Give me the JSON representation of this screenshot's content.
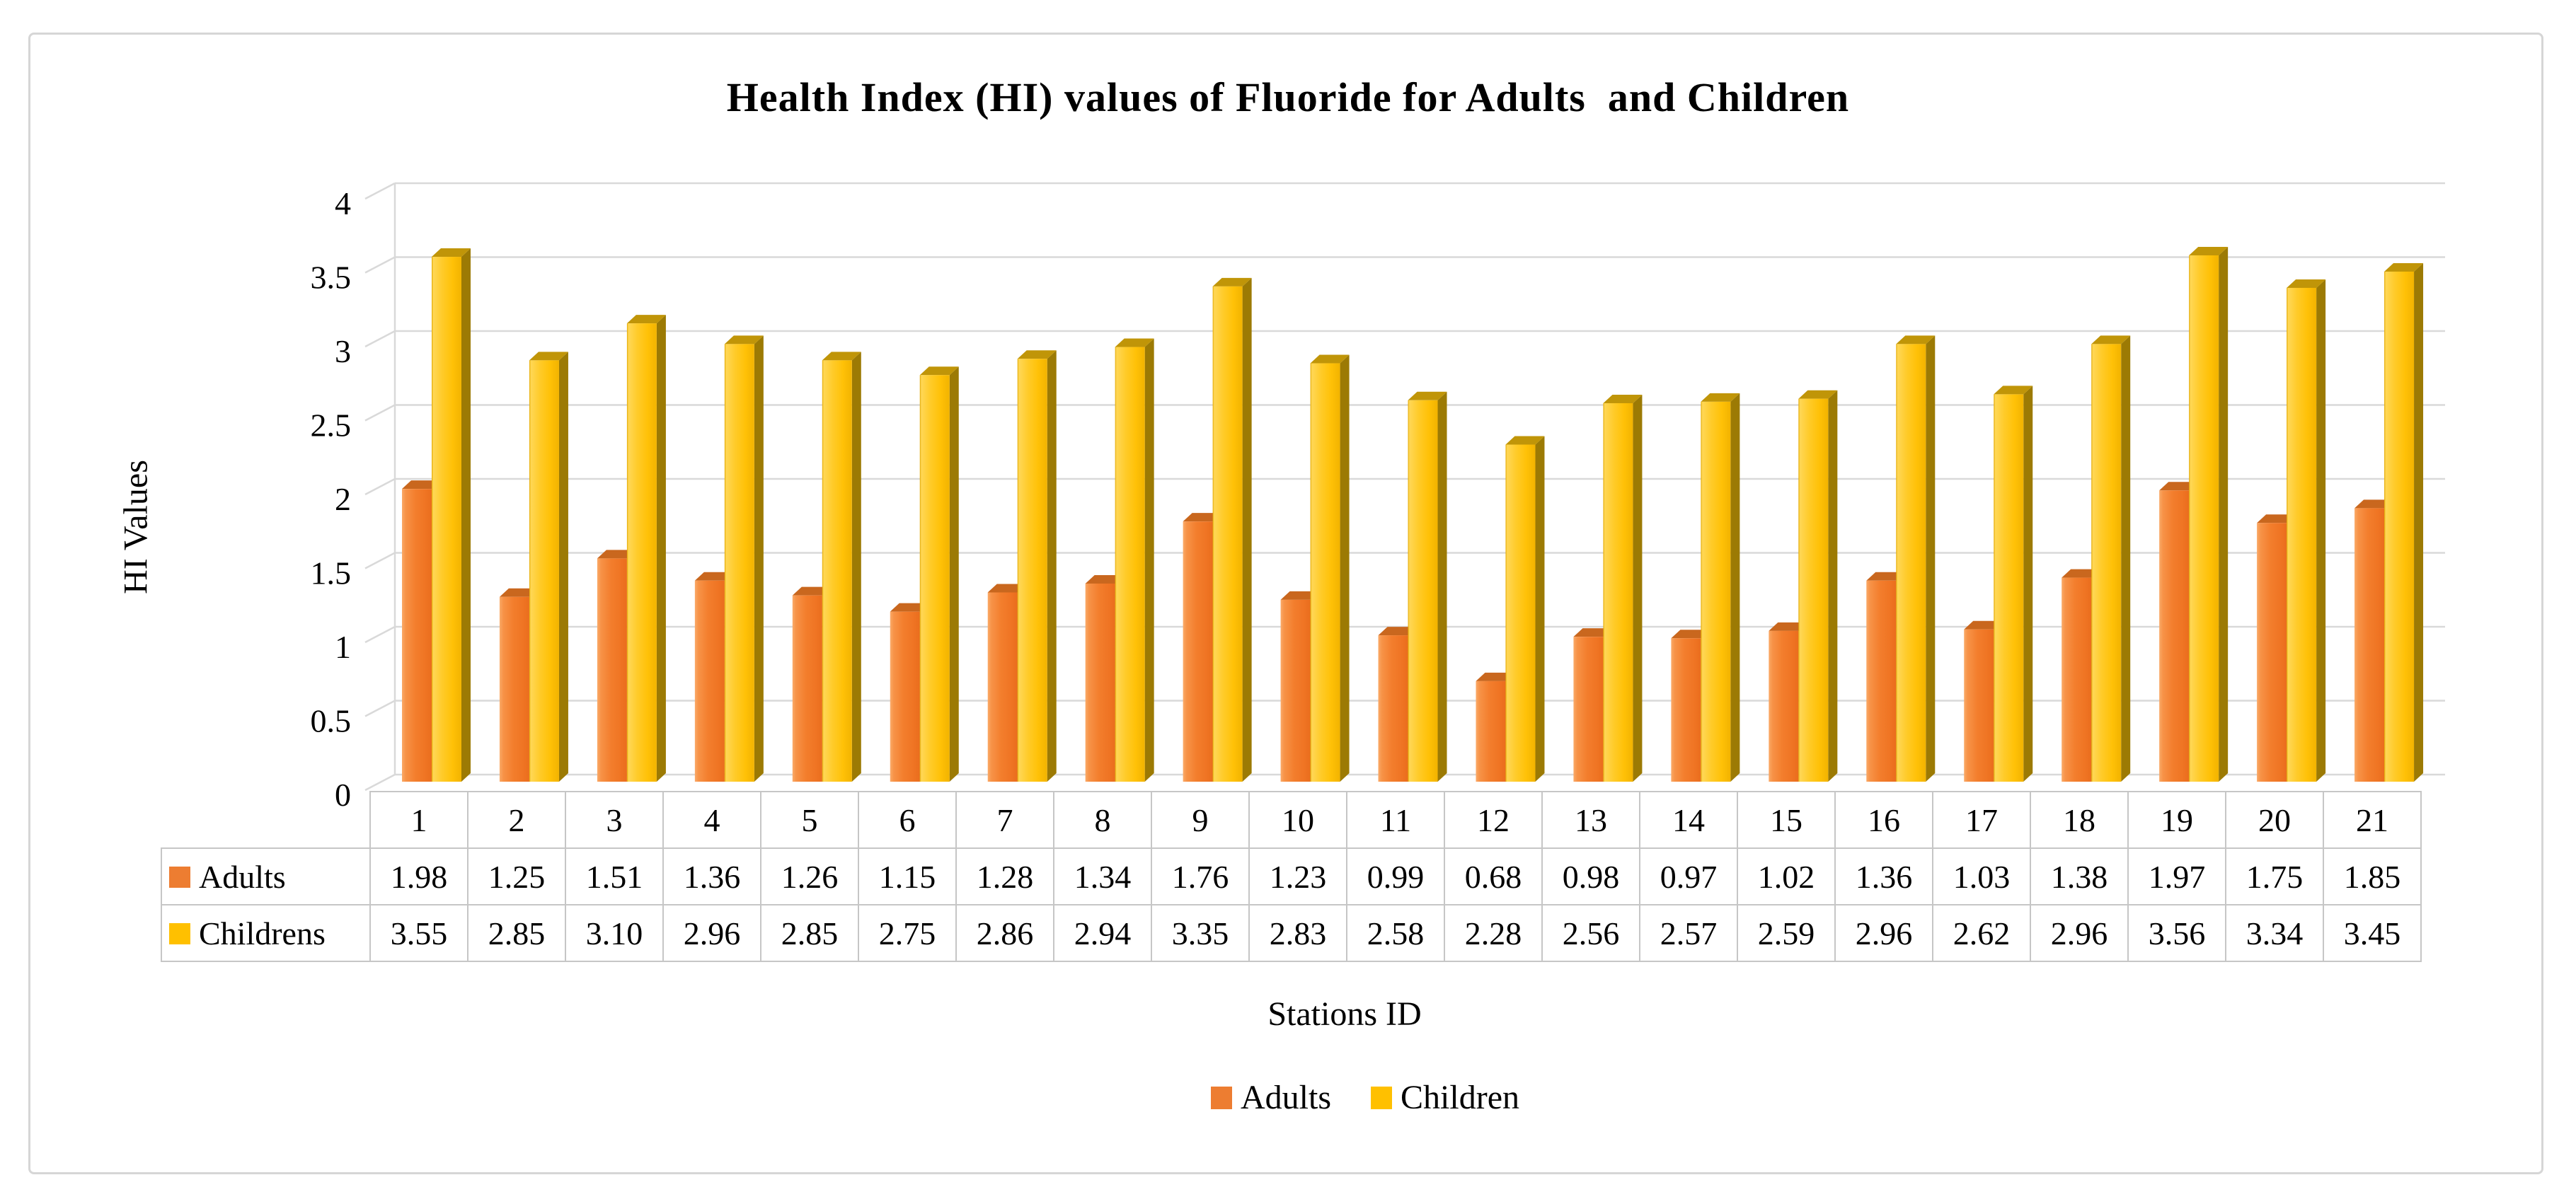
{
  "figure": {
    "background": "#FFFFFF",
    "frame_color": "#D6D6D6"
  },
  "chart_data": {
    "type": "bar",
    "style": "3d-clustered-column",
    "title": "Health Index (HI) values of Fluoride for Adults  and Children",
    "xlabel": "Stations ID",
    "ylabel": "HI Values",
    "categories": [
      "1",
      "2",
      "3",
      "4",
      "5",
      "6",
      "7",
      "8",
      "9",
      "10",
      "11",
      "12",
      "13",
      "14",
      "15",
      "16",
      "17",
      "18",
      "19",
      "20",
      "21"
    ],
    "series": [
      {
        "name": "Adults",
        "legend_label": "Adults",
        "color": "#ED7D31",
        "values": [
          1.98,
          1.25,
          1.51,
          1.36,
          1.26,
          1.15,
          1.28,
          1.34,
          1.76,
          1.23,
          0.99,
          0.68,
          0.98,
          0.97,
          1.02,
          1.36,
          1.03,
          1.38,
          1.97,
          1.75,
          1.85
        ],
        "values_display": [
          "1.98",
          "1.25",
          "1.51",
          "1.36",
          "1.26",
          "1.15",
          "1.28",
          "1.34",
          "1.76",
          "1.23",
          "0.99",
          "0.68",
          "0.98",
          "0.97",
          "1.02",
          "1.36",
          "1.03",
          "1.38",
          "1.97",
          "1.75",
          "1.85"
        ]
      },
      {
        "name": "Childrens",
        "legend_label": "Children",
        "color": "#FFC000",
        "values": [
          3.55,
          2.85,
          3.1,
          2.96,
          2.85,
          2.75,
          2.86,
          2.94,
          3.35,
          2.83,
          2.58,
          2.28,
          2.56,
          2.57,
          2.59,
          2.96,
          2.62,
          2.96,
          3.56,
          3.34,
          3.45
        ],
        "values_display": [
          "3.55",
          "2.85",
          "3.10",
          "2.96",
          "2.85",
          "2.75",
          "2.86",
          "2.94",
          "3.35",
          "2.83",
          "2.58",
          "2.28",
          "2.56",
          "2.57",
          "2.59",
          "2.96",
          "2.62",
          "2.96",
          "3.56",
          "3.34",
          "3.45"
        ]
      }
    ],
    "ylim": [
      0,
      4
    ],
    "yticks": [
      "0",
      "0.5",
      "1",
      "1.5",
      "2",
      "2.5",
      "3",
      "3.5",
      "4"
    ],
    "grid": true,
    "gridline_color": "#D9D9D9",
    "table_border_color": "#C6C6C6",
    "legend_position": "bottom"
  }
}
